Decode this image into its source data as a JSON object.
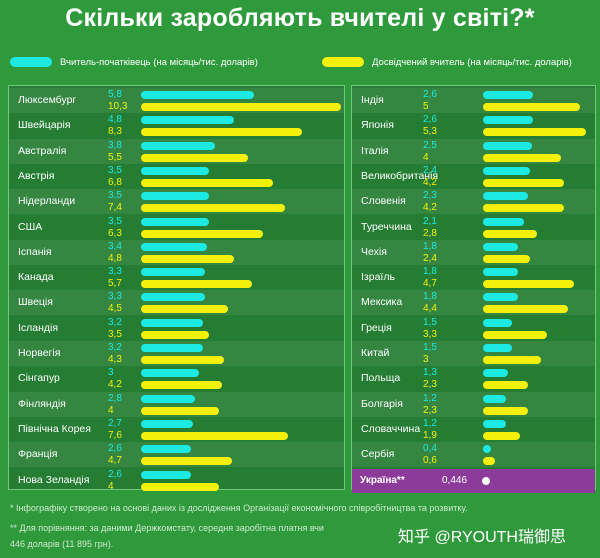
{
  "title": "Скільки заробляють вчителі у світі?*",
  "legend": {
    "novice": "Вчитель-початківець (на місяць/тис. доларів)",
    "experienced": "Досвідчений вчитель (на місяць/тис. доларів)"
  },
  "colors": {
    "novice": "#1de9e3",
    "experienced": "#f5f00a",
    "ukraine": "#8c3b9b",
    "background": "#2f9a3b"
  },
  "chart_data": {
    "type": "bar",
    "orientation": "horizontal",
    "series": [
      {
        "name": "Вчитель-початківець (на місяць/тис. доларів)"
      },
      {
        "name": "Досвідчений вчитель (на місяць/тис. доларів)"
      }
    ],
    "left": [
      {
        "country": "Люксембург",
        "novice": "5,8",
        "experienced": "10,3"
      },
      {
        "country": "Швейцарія",
        "novice": "4,8",
        "experienced": "8,3"
      },
      {
        "country": "Австралія",
        "novice": "3,8",
        "experienced": "5,5"
      },
      {
        "country": "Австрія",
        "novice": "3,5",
        "experienced": "6,8"
      },
      {
        "country": "Нідерланди",
        "novice": "3,5",
        "experienced": "7,4"
      },
      {
        "country": "США",
        "novice": "3,5",
        "experienced": "6,3"
      },
      {
        "country": "Іспанія",
        "novice": "3,4",
        "experienced": "4,8"
      },
      {
        "country": "Канада",
        "novice": "3,3",
        "experienced": "5,7"
      },
      {
        "country": "Швеція",
        "novice": "3,3",
        "experienced": "4,5"
      },
      {
        "country": "Ісландія",
        "novice": "3,2",
        "experienced": "3,5"
      },
      {
        "country": "Норвегія",
        "novice": "3,2",
        "experienced": "4,3"
      },
      {
        "country": "Сінгапур",
        "novice": "3",
        "experienced": "4,2"
      },
      {
        "country": "Фінляндія",
        "novice": "2,8",
        "experienced": "4"
      },
      {
        "country": "Північна Корея",
        "novice": "2,7",
        "experienced": "7,6"
      },
      {
        "country": "Франція",
        "novice": "2,6",
        "experienced": "4,7"
      },
      {
        "country": "Нова Зеландія",
        "novice": "2,6",
        "experienced": "4"
      }
    ],
    "right": [
      {
        "country": "Індія",
        "novice": "2,6",
        "experienced": "5"
      },
      {
        "country": "Японія",
        "novice": "2,6",
        "experienced": "5,3"
      },
      {
        "country": "Італія",
        "novice": "2,5",
        "experienced": "4"
      },
      {
        "country": "Великобританія",
        "novice": "2,4",
        "experienced": "4,2"
      },
      {
        "country": "Словенія",
        "novice": "2,3",
        "experienced": "4,2"
      },
      {
        "country": "Туреччина",
        "novice": "2,1",
        "experienced": "2,8"
      },
      {
        "country": "Чехія",
        "novice": "1,8",
        "experienced": "2,4"
      },
      {
        "country": "Ізраїль",
        "novice": "1,8",
        "experienced": "4,7"
      },
      {
        "country": "Мексика",
        "novice": "1,8",
        "experienced": "4,4"
      },
      {
        "country": "Греція",
        "novice": "1,5",
        "experienced": "3,3"
      },
      {
        "country": "Китай",
        "novice": "1,5",
        "experienced": "3"
      },
      {
        "country": "Польща",
        "novice": "1,3",
        "experienced": "2,3"
      },
      {
        "country": "Болгарія",
        "novice": "1,2",
        "experienced": "2,3"
      },
      {
        "country": "Словаччина",
        "novice": "1,2",
        "experienced": "1,9"
      },
      {
        "country": "Сербія",
        "novice": "0,4",
        "experienced": "0,6"
      }
    ],
    "ukraine": {
      "country": "Україна**",
      "value": "0,446"
    }
  },
  "notes": {
    "note1": "* Інфографіку створено на основі даних із дослідження Організації економічного співробітництва та розвитку.",
    "note2": "** Для порівняння: за даними Держкомстату, середня заробітна платня вчи",
    "note3": "446 доларів (11 895 грн)."
  },
  "watermark": "知乎 @RYOUTH瑞御思"
}
